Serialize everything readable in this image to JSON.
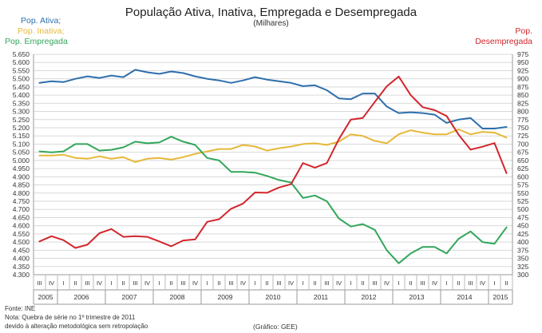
{
  "chart_data": {
    "type": "line",
    "title": "População Ativa, Inativa, Empregada  e Desempregada",
    "subtitle": "(Milhares)",
    "quarters": [
      "III",
      "IV",
      "I",
      "II",
      "III",
      "IV",
      "I",
      "II",
      "III",
      "IV",
      "I",
      "II",
      "III",
      "IV",
      "I",
      "II",
      "III",
      "IV",
      "I",
      "II",
      "III",
      "IV",
      "I",
      "II",
      "III",
      "IV",
      "I",
      "II",
      "III",
      "IV",
      "I",
      "II",
      "III",
      "IV",
      "I",
      "II",
      "III",
      "IV",
      "I",
      "II"
    ],
    "years": [
      {
        "label": "2005",
        "span": 2
      },
      {
        "label": "2006",
        "span": 4
      },
      {
        "label": "2007",
        "span": 4
      },
      {
        "label": "2008",
        "span": 4
      },
      {
        "label": "2009",
        "span": 4
      },
      {
        "label": "2010",
        "span": 4
      },
      {
        "label": "2011",
        "span": 4
      },
      {
        "label": "2012",
        "span": 4
      },
      {
        "label": "2013",
        "span": 4
      },
      {
        "label": "2014",
        "span": 4
      },
      {
        "label": "2015",
        "span": 2
      }
    ],
    "y_left": {
      "min": 4300,
      "max": 5650,
      "step": 50,
      "ticks": [
        "4.300",
        "4.350",
        "4.400",
        "4.450",
        "4.500",
        "4.550",
        "4.600",
        "4.650",
        "4.700",
        "4.750",
        "4.800",
        "4.850",
        "4.900",
        "4.950",
        "5.000",
        "5.050",
        "5.100",
        "5.150",
        "5.200",
        "5.250",
        "5.300",
        "5.350",
        "5.400",
        "5.450",
        "5.500",
        "5.550",
        "5.600",
        "5.650"
      ]
    },
    "y_right": {
      "min": 300,
      "max": 975,
      "step": 25,
      "ticks": [
        "300",
        "325",
        "350",
        "375",
        "400",
        "425",
        "450",
        "475",
        "500",
        "525",
        "550",
        "575",
        "600",
        "625",
        "650",
        "675",
        "700",
        "725",
        "750",
        "775",
        "800",
        "825",
        "850",
        "875",
        "900",
        "925",
        "950",
        "975"
      ]
    },
    "series": [
      {
        "name": "Pop. Ativa;",
        "color": "#2e6fad",
        "axis": "left",
        "values": [
          5475,
          5485,
          5480,
          5500,
          5515,
          5505,
          5520,
          5510,
          5555,
          5540,
          5530,
          5545,
          5535,
          5515,
          5500,
          5490,
          5475,
          5490,
          5510,
          5495,
          5485,
          5475,
          5455,
          5460,
          5430,
          5380,
          5375,
          5410,
          5410,
          5330,
          5290,
          5295,
          5290,
          5280,
          5230,
          5250,
          5260,
          5195,
          5195,
          5205
        ]
      },
      {
        "name": "Pop. Inativa;",
        "color": "#e6b83a",
        "axis": "left",
        "values": [
          5030,
          5030,
          5035,
          5015,
          5010,
          5025,
          5010,
          5020,
          4990,
          5010,
          5015,
          5005,
          5020,
          5040,
          5055,
          5070,
          5070,
          5095,
          5085,
          5060,
          5075,
          5085,
          5100,
          5105,
          5095,
          5115,
          5160,
          5150,
          5120,
          5105,
          5160,
          5185,
          5170,
          5160,
          5160,
          5190,
          5160,
          5175,
          5170,
          5140
        ]
      },
      {
        "name": "Pop. Empregada",
        "color": "#32a65a",
        "axis": "left",
        "values": [
          5055,
          5050,
          5055,
          5100,
          5100,
          5060,
          5065,
          5080,
          5115,
          5105,
          5110,
          5145,
          5115,
          5095,
          5015,
          5000,
          4930,
          4930,
          4925,
          4905,
          4880,
          4865,
          4770,
          4785,
          4750,
          4645,
          4595,
          4610,
          4575,
          4450,
          4370,
          4430,
          4470,
          4470,
          4430,
          4520,
          4565,
          4500,
          4490,
          4590
        ]
      },
      {
        "name": "Pop.\nDesempregada",
        "color": "#d2262c",
        "axis": "right",
        "values": [
          402,
          418,
          406,
          382,
          392,
          427,
          440,
          416,
          418,
          416,
          402,
          387,
          405,
          408,
          462,
          470,
          502,
          518,
          552,
          551,
          567,
          577,
          642,
          628,
          642,
          715,
          775,
          780,
          829,
          877,
          907,
          850,
          813,
          804,
          786,
          729,
          683,
          692,
          703,
          611
        ]
      }
    ],
    "footnotes": [
      "Fonte: INE",
      "Nota: Quebra de série no 1º trimestre de 2011",
      "devido à alteração metodológica sem retropolação"
    ],
    "credit": "(Gráfico:  GEE)",
    "grid": true,
    "legend_position": "top-left and top-right"
  }
}
